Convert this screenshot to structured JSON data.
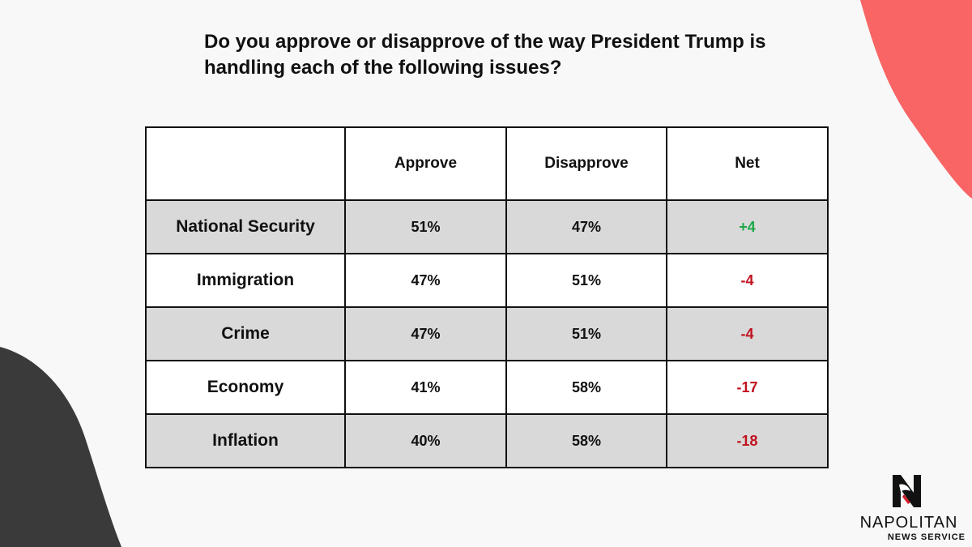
{
  "title": "Do you approve or disapprove of the way President Trump is handling each of the following issues?",
  "colors": {
    "background": "#f8f8f8",
    "coral_accent": "#f96464",
    "dark_accent": "#3a3a3a",
    "positive": "#1ea84a",
    "negative": "#c1121f",
    "row_shaded": "#d9d9d9"
  },
  "logo": {
    "icon": "napolitan-n-eagle-icon",
    "name": "NAPOLITAN",
    "subtitle": "NEWS SERVICE"
  },
  "chart_data": {
    "type": "table",
    "columns": [
      "",
      "Approve",
      "Disapprove",
      "Net"
    ],
    "rows": [
      {
        "issue": "National Security",
        "approve": "51%",
        "disapprove": "47%",
        "net": "+4"
      },
      {
        "issue": "Immigration",
        "approve": "47%",
        "disapprove": "51%",
        "net": "-4"
      },
      {
        "issue": "Crime",
        "approve": "47%",
        "disapprove": "51%",
        "net": "-4"
      },
      {
        "issue": "Economy",
        "approve": "41%",
        "disapprove": "58%",
        "net": "-17"
      },
      {
        "issue": "Inflation",
        "approve": "40%",
        "disapprove": "58%",
        "net": "-18"
      }
    ]
  }
}
